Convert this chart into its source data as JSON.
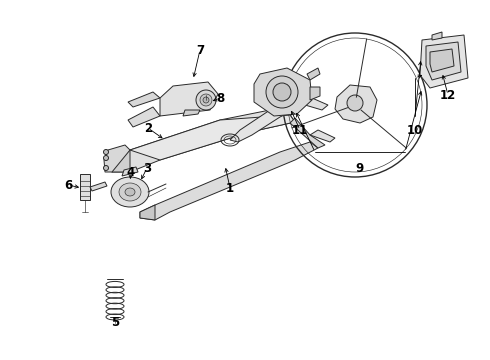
{
  "bg_color": "#ffffff",
  "line_color": "#2a2a2a",
  "label_color": "#000000",
  "fig_width": 4.9,
  "fig_height": 3.6,
  "dpi": 100,
  "label_fontsize": 8.5,
  "lw_main": 0.7,
  "lw_thin": 0.45,
  "lw_thick": 1.0,
  "parts": {
    "col_main": {
      "fc": "#e8e8e8"
    },
    "col_housing": {
      "fc": "#dcdcdc"
    },
    "bracket": {
      "fc": "#e2e2e2"
    },
    "switch": {
      "fc": "#d8d8d8"
    },
    "wheel": {
      "fc": "none"
    },
    "spring": {
      "fc": "none"
    }
  }
}
